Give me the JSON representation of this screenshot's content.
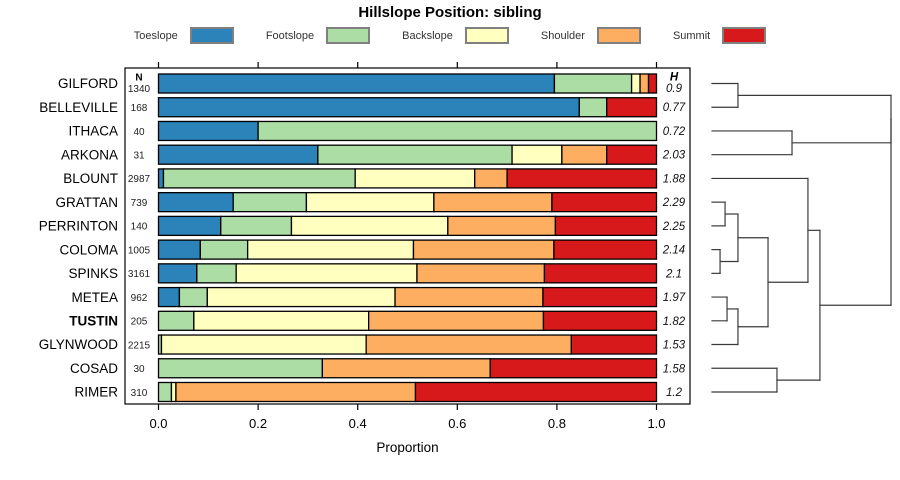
{
  "title": "Hillslope Position: sibling",
  "legend": {
    "items": [
      {
        "label": "Toeslope",
        "color": "#2B83BA"
      },
      {
        "label": "Footslope",
        "color": "#ABDDA4"
      },
      {
        "label": "Backslope",
        "color": "#FFFFBF"
      },
      {
        "label": "Shoulder",
        "color": "#FDAE61"
      },
      {
        "label": "Summit",
        "color": "#D7191C"
      }
    ]
  },
  "chart_data": {
    "type": "bar",
    "orientation": "horizontal",
    "stacked": true,
    "title": "Hillslope Position: sibling",
    "xlabel": "Proportion",
    "xlim": [
      0,
      1
    ],
    "xtick_labels": [
      "0.0",
      "0.2",
      "0.4",
      "0.6",
      "0.8",
      "1.0"
    ],
    "xtick_values": [
      0,
      0.2,
      0.4,
      0.6,
      0.8,
      1.0
    ],
    "n_column_header": "N",
    "h_column_header": "H",
    "series_names": [
      "Toeslope",
      "Footslope",
      "Backslope",
      "Shoulder",
      "Summit"
    ],
    "series_colors": [
      "#2B83BA",
      "#ABDDA4",
      "#FFFFBF",
      "#FDAE61",
      "#D7191C"
    ],
    "rows": [
      {
        "name": "GILFORD",
        "n": "1340",
        "h": "0.9",
        "bold": false,
        "values": [
          0.795,
          0.155,
          0.017,
          0.017,
          0.016
        ]
      },
      {
        "name": "BELLEVILLE",
        "n": "168",
        "h": "0.77",
        "bold": false,
        "values": [
          0.845,
          0.055,
          0,
          0,
          0.1
        ]
      },
      {
        "name": "ITHACA",
        "n": "40",
        "h": "0.72",
        "bold": false,
        "values": [
          0.2,
          0.8,
          0,
          0,
          0
        ]
      },
      {
        "name": "ARKONA",
        "n": "31",
        "h": "2.03",
        "bold": false,
        "values": [
          0.32,
          0.39,
          0.1,
          0.09,
          0.1
        ]
      },
      {
        "name": "BLOUNT",
        "n": "2987",
        "h": "1.88",
        "bold": false,
        "values": [
          0.01,
          0.385,
          0.24,
          0.065,
          0.3
        ]
      },
      {
        "name": "GRATTAN",
        "n": "739",
        "h": "2.29",
        "bold": false,
        "values": [
          0.15,
          0.147,
          0.256,
          0.237,
          0.21
        ]
      },
      {
        "name": "PERRINTON",
        "n": "140",
        "h": "2.25",
        "bold": false,
        "values": [
          0.125,
          0.142,
          0.314,
          0.216,
          0.203
        ]
      },
      {
        "name": "COLOMA",
        "n": "1005",
        "h": "2.14",
        "bold": false,
        "values": [
          0.084,
          0.095,
          0.333,
          0.282,
          0.206
        ]
      },
      {
        "name": "SPINKS",
        "n": "3161",
        "h": "2.1",
        "bold": false,
        "values": [
          0.077,
          0.079,
          0.363,
          0.256,
          0.225
        ]
      },
      {
        "name": "METEA",
        "n": "962",
        "h": "1.97",
        "bold": false,
        "values": [
          0.042,
          0.056,
          0.377,
          0.297,
          0.228
        ]
      },
      {
        "name": "TUSTIN",
        "n": "205",
        "h": "1.82",
        "bold": true,
        "values": [
          0,
          0.071,
          0.351,
          0.351,
          0.227
        ]
      },
      {
        "name": "GLYNWOOD",
        "n": "2215",
        "h": "1.53",
        "bold": false,
        "values": [
          0,
          0.006,
          0.411,
          0.412,
          0.171
        ]
      },
      {
        "name": "COSAD",
        "n": "30",
        "h": "1.58",
        "bold": false,
        "values": [
          0,
          0.329,
          0,
          0.337,
          0.334
        ]
      },
      {
        "name": "RIMER",
        "n": "310",
        "h": "1.2",
        "bold": false,
        "values": [
          0,
          0.026,
          0.009,
          0.481,
          0.484
        ]
      }
    ],
    "dendrogram": {
      "merges": [
        {
          "id": "m1",
          "children": [
            "GILFORD",
            "BELLEVILLE"
          ],
          "height": 0.145
        },
        {
          "id": "m2",
          "children": [
            "ITHACA",
            "ARKONA"
          ],
          "height": 0.447
        },
        {
          "id": "m3",
          "children": [
            "m1",
            "m2"
          ],
          "height": 1.0
        },
        {
          "id": "m4",
          "children": [
            "GRATTAN",
            "PERRINTON"
          ],
          "height": 0.073
        },
        {
          "id": "m5",
          "children": [
            "COLOMA",
            "SPINKS"
          ],
          "height": 0.045
        },
        {
          "id": "m6",
          "children": [
            "m4",
            "m5"
          ],
          "height": 0.145
        },
        {
          "id": "m7",
          "children": [
            "METEA",
            "TUSTIN"
          ],
          "height": 0.084
        },
        {
          "id": "m8",
          "children": [
            "m7",
            "GLYNWOOD"
          ],
          "height": 0.145
        },
        {
          "id": "m9",
          "children": [
            "m6",
            "m8"
          ],
          "height": 0.313
        },
        {
          "id": "m10",
          "children": [
            "BLOUNT",
            "m9"
          ],
          "height": 0.536
        },
        {
          "id": "m11",
          "children": [
            "COSAD",
            "RIMER"
          ],
          "height": 0.363
        },
        {
          "id": "m12",
          "children": [
            "m10",
            "m11"
          ],
          "height": 0.603
        },
        {
          "id": "m13",
          "children": [
            "m3",
            "m12"
          ],
          "height": 1.0
        }
      ]
    }
  }
}
